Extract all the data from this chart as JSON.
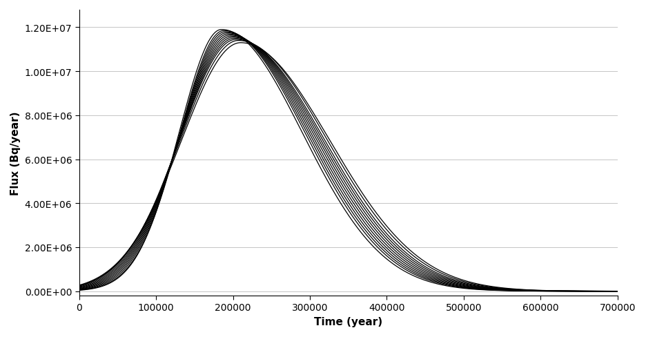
{
  "xlabel": "Time (year)",
  "ylabel": "Flux (Bq/year)",
  "xlim": [
    0,
    700000
  ],
  "ylim": [
    -200000.0,
    12800000.0
  ],
  "xticks": [
    0,
    100000,
    200000,
    300000,
    400000,
    500000,
    600000,
    700000
  ],
  "yticks": [
    0,
    2000000,
    4000000,
    6000000,
    8000000,
    10000000,
    12000000
  ],
  "ytick_labels": [
    "0.00E+00",
    "2.00E+06",
    "4.00E+06",
    "6.00E+06",
    "8.00E+06",
    "1.00E+07",
    "1.20E+07"
  ],
  "num_curves": 12,
  "peak_times": [
    185000,
    188000,
    190000,
    192000,
    194000,
    196000,
    198000,
    200000,
    202000,
    204000,
    207000,
    210000
  ],
  "peak_values": [
    11900000.0,
    11850000.0,
    11800000.0,
    11750000.0,
    11700000.0,
    11650000.0,
    11600000.0,
    11550000.0,
    11500000.0,
    11450000.0,
    11400000.0,
    11300000.0
  ],
  "rise_sigmas": [
    55000,
    57000,
    59000,
    61000,
    63000,
    65000,
    67000,
    69000,
    71000,
    73000,
    75000,
    77000
  ],
  "fall_sigmas": [
    105000,
    106000,
    107000,
    108000,
    109000,
    110000,
    111000,
    112000,
    113000,
    114000,
    115000,
    116000
  ],
  "line_color": "#000000",
  "line_width": 0.9,
  "background_color": "#ffffff",
  "grid_color": "#bbbbbb",
  "font_size": 10
}
